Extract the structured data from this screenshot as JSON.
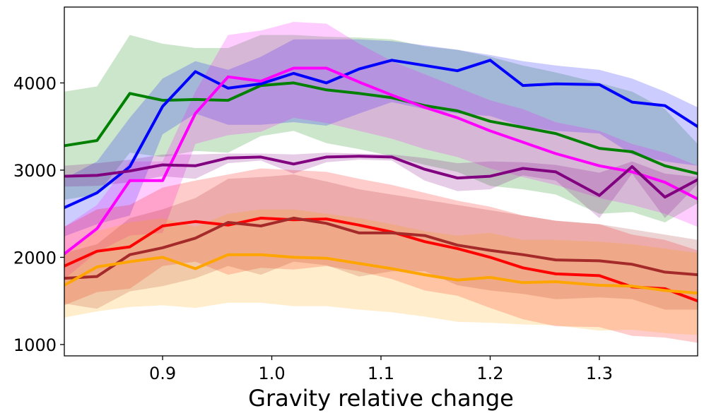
{
  "chart_data": {
    "type": "line",
    "title": "",
    "xlabel": "Gravity relative change",
    "ylabel": "",
    "xlim": [
      0.81,
      1.39
    ],
    "ylim": [
      870,
      4870
    ],
    "xticks": [
      0.9,
      1.0,
      1.1,
      1.2,
      1.3
    ],
    "xtick_labels": [
      "0.9",
      "1.0",
      "1.1",
      "1.2",
      "1.3"
    ],
    "yticks": [
      1000,
      2000,
      3000,
      4000
    ],
    "ytick_labels": [
      "1000",
      "2000",
      "3000",
      "4000"
    ],
    "grid": false,
    "legend": null,
    "x": [
      0.81,
      0.84,
      0.87,
      0.9,
      0.93,
      0.96,
      0.99,
      1.02,
      1.05,
      1.08,
      1.11,
      1.14,
      1.17,
      1.2,
      1.23,
      1.26,
      1.3,
      1.33,
      1.36,
      1.39
    ],
    "series": [
      {
        "name": "green",
        "color": "#008000",
        "values": [
          3280,
          3340,
          3880,
          3800,
          3810,
          3800,
          3970,
          4000,
          3920,
          3880,
          3830,
          3740,
          3680,
          3560,
          3490,
          3420,
          3250,
          3210,
          3050,
          2960
        ],
        "upper": [
          3900,
          3960,
          4550,
          4450,
          4400,
          4400,
          4550,
          4550,
          4530,
          4520,
          4500,
          4420,
          4380,
          4300,
          4200,
          4120,
          4000,
          3900,
          3700,
          3300
        ],
        "lower": [
          2660,
          2720,
          3200,
          3150,
          3220,
          3200,
          3390,
          3450,
          3310,
          3240,
          3160,
          3060,
          2980,
          2820,
          2780,
          2720,
          2500,
          2520,
          2400,
          2620
        ]
      },
      {
        "name": "blue",
        "color": "#0000ff",
        "values": [
          2570,
          2740,
          3040,
          3730,
          4130,
          3940,
          3990,
          4110,
          4000,
          4160,
          4260,
          4200,
          4140,
          4260,
          3970,
          3990,
          3980,
          3780,
          3740,
          3500
        ],
        "upper": [
          2900,
          3100,
          3600,
          4050,
          4250,
          4150,
          4300,
          4500,
          4500,
          4500,
          4480,
          4430,
          4380,
          4320,
          4250,
          4200,
          4150,
          4050,
          3900,
          3720
        ],
        "lower": [
          2240,
          2380,
          2480,
          3410,
          3650,
          3520,
          3520,
          3550,
          3510,
          3650,
          3780,
          3700,
          3650,
          3620,
          3500,
          3450,
          3420,
          3180,
          3100,
          3050
        ]
      },
      {
        "name": "magenta",
        "color": "#ff00ff",
        "values": [
          2040,
          2330,
          2880,
          2880,
          3650,
          4070,
          4020,
          4170,
          4170,
          4010,
          3860,
          3720,
          3600,
          3450,
          3320,
          3190,
          3050,
          2980,
          2860,
          2670
        ],
        "upper": [
          2350,
          2600,
          3100,
          3100,
          3900,
          4550,
          4600,
          4700,
          4680,
          4450,
          4250,
          4100,
          3950,
          3800,
          3700,
          3550,
          3450,
          3300,
          3200,
          3050
        ],
        "lower": [
          1750,
          2060,
          2250,
          2280,
          3300,
          3400,
          3440,
          3600,
          3540,
          3450,
          3360,
          3240,
          3150,
          3020,
          2920,
          2830,
          2680,
          2600,
          2500,
          2350
        ]
      },
      {
        "name": "purple",
        "color": "#800080",
        "values": [
          2930,
          2940,
          2990,
          3060,
          3050,
          3140,
          3150,
          3070,
          3150,
          3160,
          3150,
          3010,
          2910,
          2930,
          3020,
          2980,
          2710,
          3040,
          2690,
          2890
        ],
        "upper": [
          3050,
          3080,
          3120,
          3180,
          3180,
          3190,
          3190,
          3180,
          3200,
          3190,
          3180,
          3140,
          3080,
          3100,
          3090,
          3060,
          2970,
          3100,
          2960,
          2920
        ],
        "lower": [
          2810,
          2820,
          2860,
          2930,
          2900,
          3080,
          3110,
          2960,
          3090,
          3120,
          3110,
          2880,
          2760,
          2780,
          2940,
          2880,
          2450,
          2960,
          2450,
          2840
        ]
      },
      {
        "name": "red",
        "color": "#ff0000",
        "values": [
          1900,
          2070,
          2120,
          2360,
          2410,
          2370,
          2450,
          2430,
          2440,
          2370,
          2290,
          2180,
          2100,
          2000,
          1880,
          1810,
          1790,
          1660,
          1640,
          1500
        ],
        "upper": [
          2350,
          2550,
          2600,
          2800,
          2880,
          2950,
          3020,
          3000,
          2980,
          2900,
          2830,
          2740,
          2650,
          2580,
          2480,
          2420,
          2380,
          2260,
          2200,
          2080
        ],
        "lower": [
          1450,
          1600,
          1640,
          1900,
          1950,
          1800,
          1880,
          1860,
          1900,
          1840,
          1750,
          1620,
          1560,
          1420,
          1290,
          1210,
          1200,
          1100,
          1080,
          1020
        ]
      },
      {
        "name": "brown",
        "color": "#a52a2a",
        "values": [
          1760,
          1780,
          2030,
          2110,
          2220,
          2400,
          2360,
          2450,
          2390,
          2280,
          2280,
          2250,
          2140,
          2080,
          2030,
          1970,
          1960,
          1920,
          1830,
          1800
        ],
        "upper": [
          2050,
          2150,
          2450,
          2550,
          2680,
          2900,
          2920,
          2950,
          2870,
          2780,
          2720,
          2660,
          2600,
          2540,
          2480,
          2420,
          2380,
          2320,
          2260,
          2200
        ],
        "lower": [
          1470,
          1410,
          1610,
          1670,
          1760,
          1900,
          1800,
          1950,
          1910,
          1780,
          1840,
          1840,
          1680,
          1620,
          1580,
          1520,
          1540,
          1520,
          1400,
          1400
        ]
      },
      {
        "name": "orange",
        "color": "#ffa500",
        "values": [
          1680,
          1890,
          1950,
          2000,
          1870,
          2030,
          2030,
          2000,
          1990,
          1930,
          1870,
          1800,
          1740,
          1770,
          1710,
          1720,
          1680,
          1670,
          1620,
          1590
        ],
        "upper": [
          2050,
          2300,
          2400,
          2450,
          2350,
          2500,
          2550,
          2550,
          2500,
          2450,
          2380,
          2300,
          2250,
          2280,
          2200,
          2200,
          2180,
          2150,
          2100,
          2050
        ],
        "lower": [
          1310,
          1380,
          1430,
          1450,
          1420,
          1480,
          1480,
          1440,
          1440,
          1400,
          1370,
          1320,
          1260,
          1250,
          1230,
          1220,
          1160,
          1170,
          1130,
          1110
        ]
      }
    ]
  }
}
